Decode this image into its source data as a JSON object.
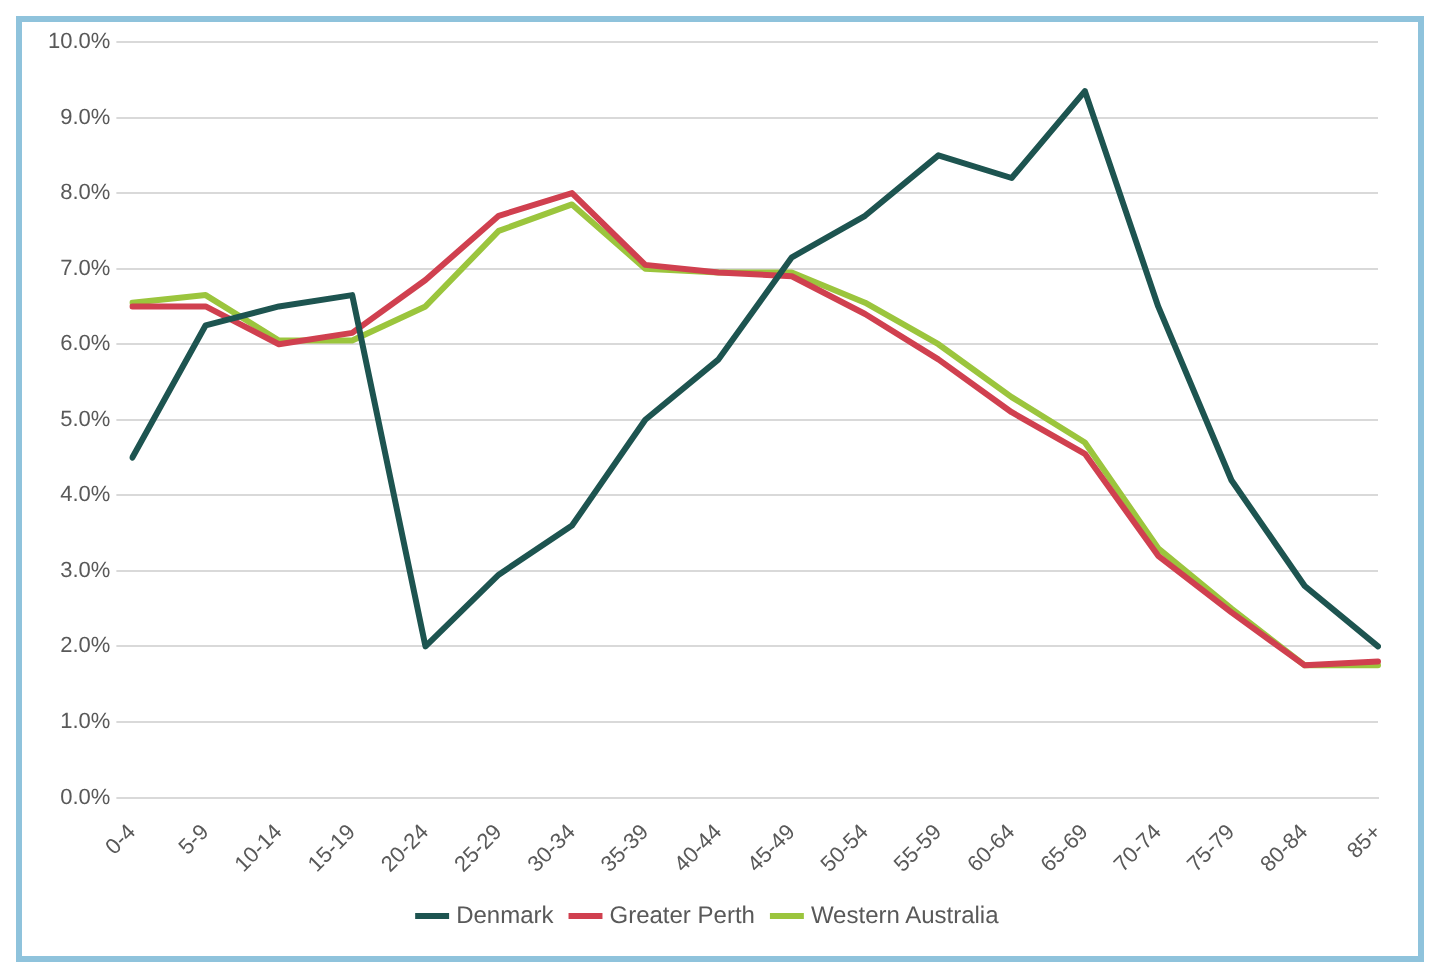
{
  "chart_data": {
    "type": "line",
    "categories": [
      "0-4",
      "5-9",
      "10-14",
      "15-19",
      "20-24",
      "25-29",
      "30-34",
      "35-39",
      "40-44",
      "45-49",
      "50-54",
      "55-59",
      "60-64",
      "65-69",
      "70-74",
      "75-79",
      "80-84",
      "85+"
    ],
    "series": [
      {
        "name": "Denmark",
        "color": "#1d5450",
        "values": [
          4.5,
          6.25,
          6.5,
          6.65,
          2.0,
          2.95,
          3.6,
          5.0,
          5.8,
          7.15,
          7.7,
          8.5,
          8.2,
          9.35,
          6.5,
          4.2,
          2.8,
          2.0
        ]
      },
      {
        "name": "Greater Perth",
        "color": "#d0404f",
        "values": [
          6.5,
          6.5,
          6.0,
          6.15,
          6.85,
          7.7,
          8.0,
          7.05,
          6.95,
          6.9,
          6.4,
          5.8,
          5.1,
          4.55,
          3.2,
          2.45,
          1.75,
          1.8
        ]
      },
      {
        "name": "Western Australia",
        "color": "#9bc53d",
        "values": [
          6.55,
          6.65,
          6.05,
          6.05,
          6.5,
          7.5,
          7.85,
          7.0,
          6.95,
          6.95,
          6.55,
          6.0,
          5.3,
          4.7,
          3.3,
          2.5,
          1.75,
          1.75
        ]
      }
    ],
    "ylim": [
      0,
      10
    ],
    "yticks": [
      {
        "value": 0,
        "label": "0.0%"
      },
      {
        "value": 1,
        "label": "1.0%"
      },
      {
        "value": 2,
        "label": "2.0%"
      },
      {
        "value": 3,
        "label": "3.0%"
      },
      {
        "value": 4,
        "label": "4.0%"
      },
      {
        "value": 5,
        "label": "5.0%"
      },
      {
        "value": 6,
        "label": "6.0%"
      },
      {
        "value": 7,
        "label": "7.0%"
      },
      {
        "value": 8,
        "label": "8.0%"
      },
      {
        "value": 9,
        "label": "9.0%"
      },
      {
        "value": 10,
        "label": "10.0%"
      }
    ],
    "grid": "y",
    "legend": "bottom",
    "marker": "none",
    "line_style": "solid"
  }
}
